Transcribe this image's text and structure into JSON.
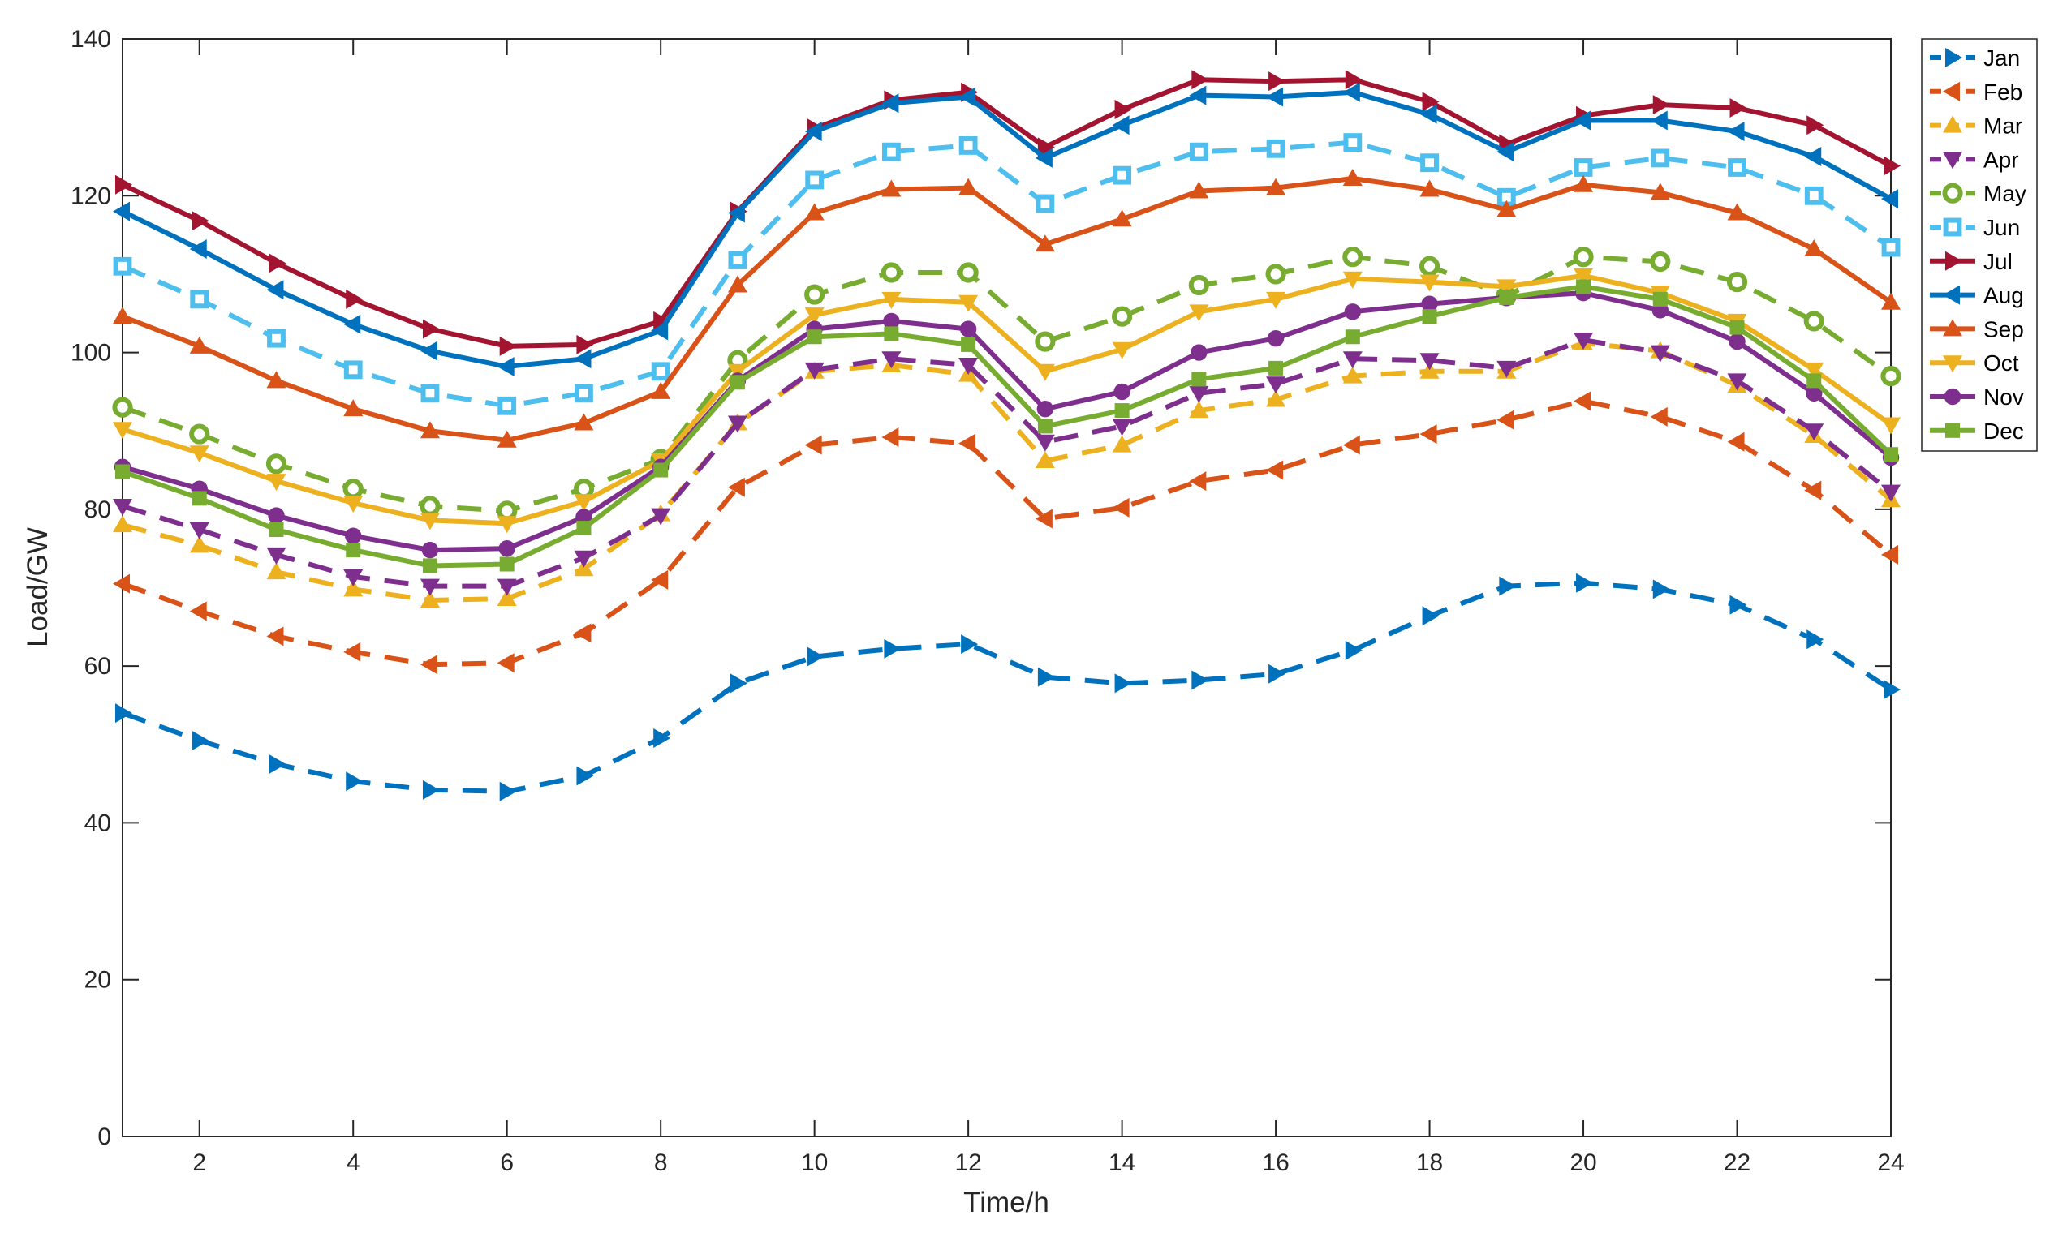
{
  "chart_data": {
    "type": "line",
    "title": "",
    "xlabel": "Time/h",
    "ylabel": "Load/GW",
    "xlim": [
      1,
      24
    ],
    "ylim": [
      0,
      140
    ],
    "x": [
      1,
      2,
      3,
      4,
      5,
      6,
      7,
      8,
      9,
      10,
      11,
      12,
      13,
      14,
      15,
      16,
      17,
      18,
      19,
      20,
      21,
      22,
      23,
      24
    ],
    "x_ticks": [
      2,
      4,
      6,
      8,
      10,
      12,
      14,
      16,
      18,
      20,
      22,
      24
    ],
    "y_ticks": [
      0,
      20,
      40,
      60,
      80,
      100,
      120,
      140
    ],
    "x_tick_labels": [
      "2",
      "4",
      "6",
      "8",
      "10",
      "12",
      "14",
      "16",
      "18",
      "20",
      "22",
      "24"
    ],
    "y_tick_labels": [
      "0",
      "20",
      "40",
      "60",
      "80",
      "100",
      "120",
      "140"
    ],
    "grid": false,
    "legend_position": "outside-top-right",
    "series": [
      {
        "name": "Jan",
        "color": "#0072BD",
        "dashed": true,
        "marker": "triangle-right",
        "values": [
          54,
          50.5,
          47.5,
          45.3,
          44.2,
          44,
          46,
          50.8,
          57.8,
          61.2,
          62.2,
          62.8,
          58.6,
          57.8,
          58.2,
          59,
          62,
          66.4,
          70.2,
          70.6,
          69.8,
          67.8,
          63.4,
          57
        ]
      },
      {
        "name": "Feb",
        "color": "#D95319",
        "dashed": true,
        "marker": "triangle-left",
        "values": [
          70.5,
          67,
          63.8,
          61.8,
          60.2,
          60.4,
          64.2,
          71,
          82.8,
          88.2,
          89.2,
          88.4,
          78.8,
          80.2,
          83.6,
          85,
          88.2,
          89.6,
          91.4,
          93.8,
          91.8,
          88.6,
          82.4,
          74.2
        ]
      },
      {
        "name": "Mar",
        "color": "#EDB120",
        "dashed": true,
        "marker": "triangle-up",
        "values": [
          78,
          75.4,
          72,
          69.8,
          68.4,
          68.6,
          72.4,
          79.4,
          91,
          97.6,
          98.4,
          97.2,
          86.2,
          88.2,
          92.6,
          94,
          97,
          97.6,
          97.6,
          101.2,
          100.2,
          95.8,
          89.4,
          81.2
        ]
      },
      {
        "name": "Apr",
        "color": "#7E2F8E",
        "dashed": true,
        "marker": "triangle-down",
        "values": [
          80.4,
          77.4,
          74.2,
          71.4,
          70.2,
          70.2,
          73.8,
          79.2,
          91,
          97.8,
          99.2,
          98.4,
          88.6,
          90.6,
          94.8,
          96,
          99.2,
          99,
          98,
          101.6,
          100,
          96.4,
          90,
          82.2
        ]
      },
      {
        "name": "May",
        "color": "#77AC30",
        "dashed": true,
        "marker": "circle-open",
        "values": [
          93,
          89.6,
          85.8,
          82.6,
          80.4,
          79.8,
          82.6,
          86.4,
          99,
          107.4,
          110.2,
          110.2,
          101.4,
          104.6,
          108.6,
          110,
          112.2,
          111,
          107.2,
          112.2,
          111.6,
          109,
          104,
          97
        ]
      },
      {
        "name": "Jun",
        "color": "#4DBEEE",
        "dashed": true,
        "marker": "square-open",
        "values": [
          111,
          106.8,
          101.8,
          97.8,
          94.8,
          93.2,
          94.8,
          97.6,
          111.8,
          122,
          125.6,
          126.4,
          119,
          122.6,
          125.6,
          126,
          126.8,
          124.2,
          119.8,
          123.6,
          124.8,
          123.6,
          120,
          113.4
        ]
      },
      {
        "name": "Jul",
        "color": "#A2142F",
        "dashed": false,
        "marker": "triangle-right",
        "values": [
          121.4,
          116.8,
          111.4,
          106.8,
          103,
          100.8,
          101,
          104,
          118,
          128.6,
          132.2,
          133.2,
          126.2,
          131,
          134.8,
          134.6,
          134.8,
          132,
          126.6,
          130.2,
          131.6,
          131.2,
          129,
          123.8
        ]
      },
      {
        "name": "Aug",
        "color": "#0072BD",
        "dashed": false,
        "marker": "triangle-left",
        "values": [
          118,
          113.2,
          108,
          103.6,
          100.2,
          98.2,
          99.2,
          102.8,
          117.8,
          128.2,
          131.8,
          132.6,
          124.8,
          129,
          132.8,
          132.6,
          133.2,
          130.4,
          125.6,
          129.6,
          129.6,
          128.2,
          125,
          119.6
        ]
      },
      {
        "name": "Sep",
        "color": "#D95319",
        "dashed": false,
        "marker": "triangle-up",
        "values": [
          104.6,
          100.8,
          96.4,
          92.8,
          90,
          88.8,
          91,
          95,
          108.6,
          117.8,
          120.8,
          121,
          113.8,
          117,
          120.6,
          121,
          122.2,
          120.8,
          118.2,
          121.4,
          120.4,
          117.8,
          113.2,
          106.4
        ]
      },
      {
        "name": "Oct",
        "color": "#EDB120",
        "dashed": false,
        "marker": "triangle-down",
        "values": [
          90.2,
          87.2,
          83.6,
          80.8,
          78.6,
          78.2,
          81,
          86.2,
          97.6,
          104.8,
          106.8,
          106.4,
          97.6,
          100.4,
          105.2,
          106.8,
          109.4,
          109,
          108.4,
          109.8,
          107.6,
          104,
          97.8,
          90.8
        ]
      },
      {
        "name": "Nov",
        "color": "#7E2F8E",
        "dashed": false,
        "marker": "circle-filled",
        "values": [
          85.4,
          82.6,
          79.2,
          76.6,
          74.8,
          75,
          79,
          85.4,
          96.4,
          103,
          104,
          103,
          92.8,
          95,
          100,
          101.8,
          105.2,
          106.2,
          107,
          107.6,
          105.4,
          101.4,
          94.8,
          86.6
        ]
      },
      {
        "name": "Dec",
        "color": "#77AC30",
        "dashed": false,
        "marker": "square-filled",
        "values": [
          84.8,
          81.4,
          77.4,
          74.8,
          72.8,
          73,
          77.6,
          85,
          96.2,
          102,
          102.4,
          101,
          90.6,
          92.6,
          96.6,
          98,
          102,
          104.6,
          107,
          108.4,
          106.8,
          103.2,
          96.4,
          87
        ]
      }
    ]
  }
}
